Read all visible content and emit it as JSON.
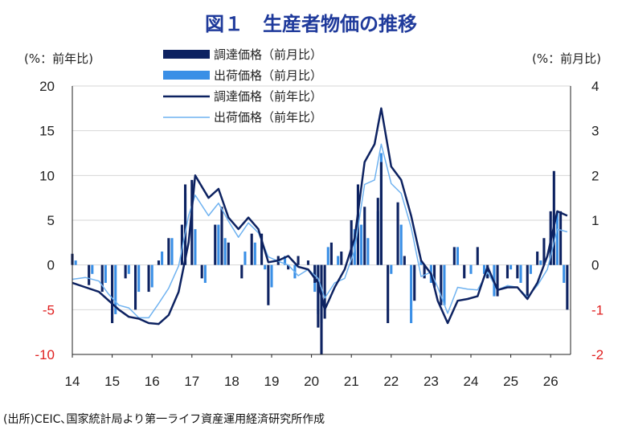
{
  "title": "図１　生産者物価の推移",
  "left_unit": "(%：前年比)",
  "right_unit": "(%：前月比)",
  "source": "(出所)CEIC､国家統計局より第一ライフ資産運用経済研究所作成",
  "colors": {
    "title": "#1f3a9b",
    "ppi_mom": "#0d2261",
    "output_mom": "#3a8fe6",
    "ppi_yoy": "#0d2261",
    "output_yoy": "#6fb2f0",
    "negative_tick": "#e02020"
  },
  "chart_data": {
    "type": "bar+line",
    "x_tick_labels": [
      "14",
      "15",
      "16",
      "17",
      "18",
      "19",
      "20",
      "21",
      "22",
      "23",
      "24",
      "25",
      "26"
    ],
    "left_axis": {
      "label": "(%：前年比)",
      "ylim": [
        -10,
        20
      ],
      "ticks": [
        20,
        15,
        10,
        5,
        0,
        -5,
        -10
      ]
    },
    "right_axis": {
      "label": "(%：前月比)",
      "ylim": [
        -2,
        4
      ],
      "ticks": [
        4,
        3,
        2,
        1,
        0,
        -1,
        -2
      ]
    },
    "negative_ticks_red": true,
    "grid": "horizontal",
    "legend_position": "top-center",
    "series": [
      {
        "name": "調達価格（前年比）",
        "type": "line",
        "axis": "left",
        "points": [
          [
            "2014-01",
            -2.0
          ],
          [
            "2014-05",
            -2.5
          ],
          [
            "2014-09",
            -3.0
          ],
          [
            "2014-12",
            -4.0
          ],
          [
            "2015-03",
            -5.0
          ],
          [
            "2015-06",
            -5.8
          ],
          [
            "2015-09",
            -6.0
          ],
          [
            "2015-12",
            -6.5
          ],
          [
            "2016-03",
            -6.6
          ],
          [
            "2016-06",
            -5.6
          ],
          [
            "2016-09",
            -3.0
          ],
          [
            "2016-12",
            2.5
          ],
          [
            "2017-02",
            10.0
          ],
          [
            "2017-06",
            7.5
          ],
          [
            "2017-09",
            8.5
          ],
          [
            "2017-12",
            5.3
          ],
          [
            "2018-03",
            4.0
          ],
          [
            "2018-06",
            5.3
          ],
          [
            "2018-09",
            4.0
          ],
          [
            "2018-12",
            0.3
          ],
          [
            "2019-03",
            0.5
          ],
          [
            "2019-06",
            1.0
          ],
          [
            "2019-09",
            -0.2
          ],
          [
            "2019-12",
            -0.5
          ],
          [
            "2020-03",
            -2.0
          ],
          [
            "2020-05",
            -5.0
          ],
          [
            "2020-08",
            -2.5
          ],
          [
            "2020-11",
            -0.5
          ],
          [
            "2021-02",
            3.0
          ],
          [
            "2021-05",
            11.5
          ],
          [
            "2021-08",
            13.5
          ],
          [
            "2021-10",
            17.5
          ],
          [
            "2022-01",
            11.0
          ],
          [
            "2022-04",
            9.5
          ],
          [
            "2022-07",
            5.5
          ],
          [
            "2022-10",
            0.5
          ],
          [
            "2023-01",
            -1.0
          ],
          [
            "2023-03",
            -4.0
          ],
          [
            "2023-06",
            -6.5
          ],
          [
            "2023-09",
            -4.0
          ],
          [
            "2023-12",
            -3.8
          ],
          [
            "2024-03",
            -3.5
          ],
          [
            "2024-06",
            -0.2
          ],
          [
            "2024-09",
            -2.8
          ],
          [
            "2024-12",
            -2.5
          ],
          [
            "2025-03",
            -2.5
          ],
          [
            "2025-06",
            -3.8
          ],
          [
            "2025-09",
            -2.0
          ],
          [
            "2025-12",
            1.0
          ],
          [
            "2026-03",
            6.0
          ],
          [
            "2026-06",
            5.5
          ]
        ]
      },
      {
        "name": "出荷価格（前年比）",
        "type": "line",
        "axis": "left",
        "points": [
          [
            "2014-01",
            -1.6
          ],
          [
            "2014-05",
            -1.4
          ],
          [
            "2014-09",
            -1.8
          ],
          [
            "2014-12",
            -3.3
          ],
          [
            "2015-03",
            -4.5
          ],
          [
            "2015-06",
            -4.8
          ],
          [
            "2015-09",
            -5.9
          ],
          [
            "2015-12",
            -5.9
          ],
          [
            "2016-03",
            -4.3
          ],
          [
            "2016-06",
            -2.6
          ],
          [
            "2016-09",
            -0.1
          ],
          [
            "2016-12",
            5.5
          ],
          [
            "2017-02",
            7.8
          ],
          [
            "2017-06",
            5.5
          ],
          [
            "2017-09",
            6.9
          ],
          [
            "2017-12",
            4.9
          ],
          [
            "2018-03",
            3.1
          ],
          [
            "2018-06",
            4.7
          ],
          [
            "2018-09",
            3.6
          ],
          [
            "2018-12",
            0.9
          ],
          [
            "2019-03",
            0.4
          ],
          [
            "2019-06",
            0.0
          ],
          [
            "2019-09",
            -1.2
          ],
          [
            "2019-12",
            -0.5
          ],
          [
            "2020-03",
            -1.5
          ],
          [
            "2020-05",
            -3.7
          ],
          [
            "2020-08",
            -2.0
          ],
          [
            "2020-11",
            -1.5
          ],
          [
            "2021-02",
            1.7
          ],
          [
            "2021-05",
            9.0
          ],
          [
            "2021-08",
            9.5
          ],
          [
            "2021-10",
            13.5
          ],
          [
            "2022-01",
            9.1
          ],
          [
            "2022-04",
            8.0
          ],
          [
            "2022-07",
            4.2
          ],
          [
            "2022-10",
            -1.3
          ],
          [
            "2023-01",
            -0.8
          ],
          [
            "2023-03",
            -2.5
          ],
          [
            "2023-06",
            -5.4
          ],
          [
            "2023-09",
            -2.5
          ],
          [
            "2023-12",
            -2.7
          ],
          [
            "2024-03",
            -2.8
          ],
          [
            "2024-06",
            -0.8
          ],
          [
            "2024-09",
            -2.8
          ],
          [
            "2024-12",
            -2.3
          ],
          [
            "2025-03",
            -2.5
          ],
          [
            "2025-06",
            -3.6
          ],
          [
            "2025-09",
            -2.3
          ],
          [
            "2025-12",
            -0.5
          ],
          [
            "2026-03",
            4.0
          ],
          [
            "2026-06",
            3.7
          ]
        ]
      },
      {
        "name": "調達価格（前月比）",
        "type": "bar",
        "axis": "right",
        "points": [
          [
            "2014-01",
            0.25
          ],
          [
            "2014-06",
            -0.45
          ],
          [
            "2014-10",
            -0.6
          ],
          [
            "2015-01",
            -1.3
          ],
          [
            "2015-05",
            -0.3
          ],
          [
            "2015-08",
            -1.0
          ],
          [
            "2015-12",
            -0.6
          ],
          [
            "2016-03",
            0.1
          ],
          [
            "2016-06",
            0.6
          ],
          [
            "2016-10",
            0.9
          ],
          [
            "2016-11",
            1.8
          ],
          [
            "2017-01",
            1.9
          ],
          [
            "2017-04",
            -0.3
          ],
          [
            "2017-08",
            0.9
          ],
          [
            "2017-10",
            1.3
          ],
          [
            "2017-12",
            0.5
          ],
          [
            "2018-04",
            -0.3
          ],
          [
            "2018-07",
            0.7
          ],
          [
            "2018-10",
            0.7
          ],
          [
            "2018-12",
            -0.9
          ],
          [
            "2019-03",
            0.2
          ],
          [
            "2019-06",
            -0.1
          ],
          [
            "2019-09",
            0.2
          ],
          [
            "2019-12",
            0.1
          ],
          [
            "2020-02",
            -0.4
          ],
          [
            "2020-03",
            -1.4
          ],
          [
            "2020-04",
            -2.0
          ],
          [
            "2020-05",
            -1.2
          ],
          [
            "2020-07",
            0.5
          ],
          [
            "2020-10",
            0.3
          ],
          [
            "2021-01",
            1.0
          ],
          [
            "2021-03",
            1.8
          ],
          [
            "2021-05",
            1.3
          ],
          [
            "2021-09",
            1.5
          ],
          [
            "2021-10",
            2.3
          ],
          [
            "2021-12",
            -1.3
          ],
          [
            "2022-03",
            1.4
          ],
          [
            "2022-05",
            0.2
          ],
          [
            "2022-08",
            -0.8
          ],
          [
            "2022-11",
            -0.3
          ],
          [
            "2023-02",
            -0.5
          ],
          [
            "2023-04",
            -0.9
          ],
          [
            "2023-08",
            0.4
          ],
          [
            "2023-11",
            -0.3
          ],
          [
            "2024-03",
            0.4
          ],
          [
            "2024-06",
            -0.3
          ],
          [
            "2024-09",
            -0.7
          ],
          [
            "2024-12",
            -0.3
          ],
          [
            "2025-03",
            -0.3
          ],
          [
            "2025-06",
            -0.7
          ],
          [
            "2025-09",
            0.3
          ],
          [
            "2025-11",
            0.6
          ],
          [
            "2026-01",
            1.2
          ],
          [
            "2026-02",
            2.1
          ],
          [
            "2026-04",
            1.2
          ],
          [
            "2026-06",
            -1.0
          ]
        ]
      },
      {
        "name": "出荷価格（前月比）",
        "type": "bar",
        "axis": "right",
        "points": [
          [
            "2014-02",
            0.1
          ],
          [
            "2014-07",
            -0.2
          ],
          [
            "2014-11",
            -0.4
          ],
          [
            "2015-02",
            -1.1
          ],
          [
            "2015-06",
            -0.2
          ],
          [
            "2015-09",
            -0.6
          ],
          [
            "2016-01",
            -0.5
          ],
          [
            "2016-04",
            0.3
          ],
          [
            "2016-07",
            0.6
          ],
          [
            "2016-11",
            1.6
          ],
          [
            "2017-02",
            0.8
          ],
          [
            "2017-05",
            -0.4
          ],
          [
            "2017-09",
            0.9
          ],
          [
            "2017-11",
            0.6
          ],
          [
            "2018-05",
            0.3
          ],
          [
            "2018-08",
            0.5
          ],
          [
            "2018-11",
            -0.1
          ],
          [
            "2019-01",
            -0.5
          ],
          [
            "2019-05",
            0.2
          ],
          [
            "2019-08",
            -0.3
          ],
          [
            "2020-02",
            -0.6
          ],
          [
            "2020-03",
            -1.1
          ],
          [
            "2020-04",
            -1.3
          ],
          [
            "2020-06",
            0.4
          ],
          [
            "2020-09",
            0.2
          ],
          [
            "2021-02",
            0.8
          ],
          [
            "2021-04",
            0.9
          ],
          [
            "2021-06",
            0.6
          ],
          [
            "2021-09",
            1.2
          ],
          [
            "2021-10",
            2.5
          ],
          [
            "2022-01",
            -0.2
          ],
          [
            "2022-04",
            0.9
          ],
          [
            "2022-07",
            -1.3
          ],
          [
            "2022-10",
            0.1
          ],
          [
            "2023-01",
            -0.4
          ],
          [
            "2023-05",
            -0.9
          ],
          [
            "2023-09",
            0.4
          ],
          [
            "2024-01",
            -0.2
          ],
          [
            "2024-05",
            -0.2
          ],
          [
            "2024-08",
            -0.7
          ],
          [
            "2025-01",
            -0.1
          ],
          [
            "2025-04",
            -0.4
          ],
          [
            "2025-07",
            -0.2
          ],
          [
            "2025-10",
            0.1
          ],
          [
            "2026-01",
            0.6
          ],
          [
            "2026-02",
            1.1
          ],
          [
            "2026-03",
            1.2
          ],
          [
            "2026-05",
            -0.4
          ]
        ]
      }
    ]
  }
}
